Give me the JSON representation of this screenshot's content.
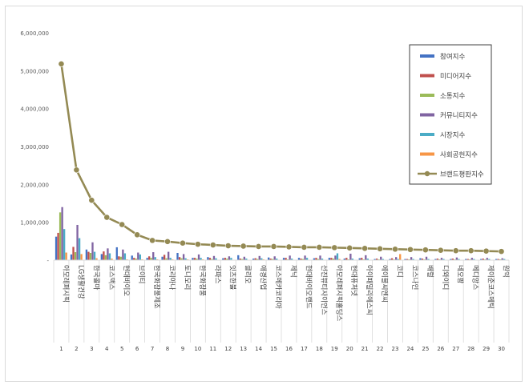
{
  "chart_data": {
    "type": "bar",
    "title": "",
    "xlabel": "",
    "ylabel": "",
    "ylim": [
      0,
      6000000
    ],
    "y_ticks": [
      "-",
      "1,000,000",
      "2,000,000",
      "3,000,000",
      "4,000,000",
      "5,000,000",
      "6,000,000"
    ],
    "grid": false,
    "legend_position": "right",
    "categories": [
      "아모레퍼시픽",
      "LG생활건강",
      "한국콜마",
      "코스맥스",
      "현대바이오",
      "브이티",
      "한국화장품제조",
      "코리아나",
      "토니모리",
      "한국화장품",
      "라파스",
      "잇츠한불",
      "클리오",
      "애경산업",
      "코스메카코리아",
      "제닉",
      "현대바이오랜드",
      "선진뷰티사이언스",
      "아모레퍼시픽홀딩스",
      "현대퓨처넷",
      "아이패밀리에스씨",
      "에이블씨엔씨",
      "코디",
      "코스나인",
      "배럴",
      "디와이디",
      "네오팜",
      "메디앙스",
      "제이준코스메틱",
      "원익"
    ],
    "numbers": [
      "1",
      "2",
      "3",
      "4",
      "5",
      "6",
      "7",
      "8",
      "9",
      "10",
      "11",
      "12",
      "13",
      "14",
      "15",
      "16",
      "17",
      "18",
      "19",
      "20",
      "21",
      "22",
      "23",
      "24",
      "25",
      "26",
      "27",
      "28",
      "29",
      "30"
    ],
    "series": [
      {
        "name": "참여지수",
        "color": "#4472c4",
        "values": [
          620000,
          150000,
          280000,
          160000,
          340000,
          120000,
          60000,
          90000,
          190000,
          60000,
          80000,
          50000,
          130000,
          40000,
          70000,
          60000,
          60000,
          50000,
          60000,
          40000,
          50000,
          30000,
          30000,
          30000,
          50000,
          30000,
          30000,
          30000,
          30000,
          30000
        ]
      },
      {
        "name": "미디어지수",
        "color": "#c0504d",
        "values": [
          720000,
          350000,
          220000,
          230000,
          100000,
          60000,
          100000,
          140000,
          80000,
          60000,
          60000,
          60000,
          40000,
          50000,
          40000,
          60000,
          40000,
          60000,
          60000,
          60000,
          60000,
          40000,
          50000,
          30000,
          40000,
          40000,
          40000,
          30000,
          40000,
          30000
        ]
      },
      {
        "name": "소통지수",
        "color": "#9bbb59",
        "values": [
          1260000,
          210000,
          190000,
          130000,
          90000,
          40000,
          60000,
          50000,
          50000,
          40000,
          30000,
          40000,
          30000,
          30000,
          30000,
          20000,
          30000,
          30000,
          40000,
          20000,
          20000,
          20000,
          20000,
          20000,
          20000,
          20000,
          20000,
          20000,
          20000,
          20000
        ]
      },
      {
        "name": "커뮤니티지수",
        "color": "#8064a2",
        "values": [
          1400000,
          930000,
          470000,
          310000,
          280000,
          200000,
          210000,
          220000,
          160000,
          150000,
          110000,
          100000,
          90000,
          110000,
          100000,
          120000,
          120000,
          120000,
          120000,
          170000,
          130000,
          90000,
          80000,
          80000,
          90000,
          60000,
          70000,
          60000,
          60000,
          50000
        ]
      },
      {
        "name": "시장지수",
        "color": "#4bacc6",
        "values": [
          820000,
          580000,
          220000,
          180000,
          180000,
          150000,
          80000,
          60000,
          50000,
          60000,
          50000,
          60000,
          40000,
          50000,
          40000,
          40000,
          60000,
          40000,
          180000,
          40000,
          40000,
          30000,
          30000,
          30000,
          30000,
          30000,
          30000,
          30000,
          30000,
          30000
        ]
      },
      {
        "name": "사회공헌지수",
        "color": "#f79646",
        "values": [
          200000,
          160000,
          50000,
          40000,
          20000,
          20000,
          20000,
          20000,
          20000,
          20000,
          10000,
          10000,
          10000,
          20000,
          10000,
          10000,
          10000,
          10000,
          30000,
          10000,
          10000,
          10000,
          160000,
          10000,
          10000,
          10000,
          10000,
          10000,
          10000,
          10000
        ]
      },
      {
        "name": "브랜드평판지수",
        "color": "#948a54",
        "type": "line",
        "values": [
          5180000,
          2380000,
          1580000,
          1130000,
          940000,
          670000,
          520000,
          490000,
          450000,
          420000,
          400000,
          380000,
          370000,
          360000,
          360000,
          350000,
          340000,
          340000,
          330000,
          320000,
          310000,
          300000,
          290000,
          280000,
          270000,
          260000,
          250000,
          250000,
          240000,
          230000
        ]
      }
    ]
  }
}
